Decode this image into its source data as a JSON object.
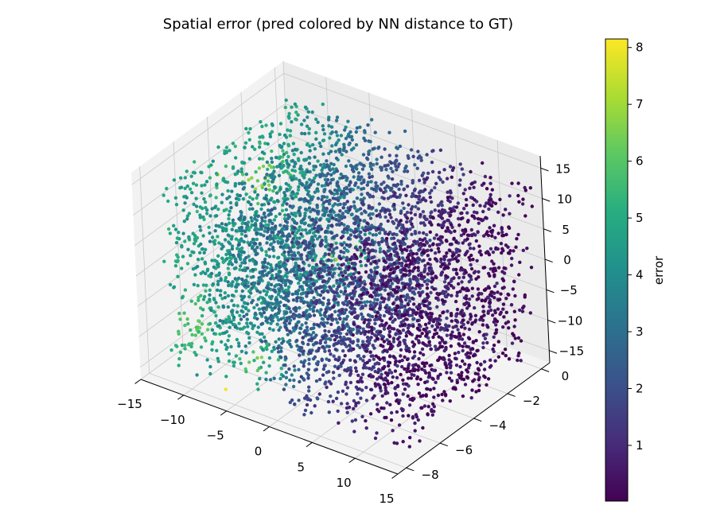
{
  "chart_data": {
    "type": "scatter3d",
    "title": "Spatial error (pred colored by NN distance to GT)",
    "colorbar": {
      "label": "error",
      "range": [
        0.02,
        8.15
      ],
      "ticks": [
        "1",
        "2",
        "3",
        "4",
        "5",
        "6",
        "7",
        "8"
      ],
      "colormap": "viridis",
      "colors": [
        "#440154",
        "#472c7a",
        "#3b518b",
        "#2c718e",
        "#21908d",
        "#27ad81",
        "#5cc863",
        "#aadc32",
        "#fde725"
      ]
    },
    "axes": {
      "x": {
        "range": [
          -15,
          15
        ],
        "ticks": [
          "−15",
          "−10",
          "−5",
          "0",
          "5",
          "10",
          "15"
        ]
      },
      "y": {
        "range": [
          -8.5,
          0.5
        ],
        "ticks": [
          "0",
          "−2",
          "−4",
          "−6",
          "−8"
        ]
      },
      "z": {
        "range": [
          -17,
          17
        ],
        "ticks": [
          "15",
          "10",
          "5",
          "0",
          "−5",
          "−10",
          "−15"
        ]
      },
      "grid": true
    },
    "point_cloud": {
      "extent": {
        "x": [
          -13,
          15
        ],
        "y": [
          -8,
          0
        ],
        "z": [
          -15,
          15
        ]
      },
      "error_trend": "error is low (~0.1) at x near 15 and rises to ~5 toward x near -10",
      "hotspots": [
        {
          "x": -11.5,
          "y": -3,
          "z": 6,
          "error": 7.3
        },
        {
          "x": -2,
          "y": -3,
          "z": -1,
          "error": 7.0
        },
        {
          "x": -4,
          "y": -7,
          "z": -12,
          "error": 6.9
        },
        {
          "x": -11,
          "y": -7,
          "z": -9,
          "error": 6.4
        }
      ],
      "outliers": [
        {
          "x": -14,
          "y": -4,
          "z": 8,
          "error": 8.1
        },
        {
          "x": -6,
          "y": -8,
          "z": -15,
          "error": 8.0
        }
      ]
    }
  }
}
